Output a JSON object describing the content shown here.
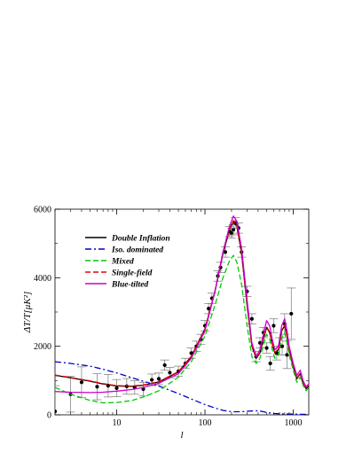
{
  "chart_data": {
    "type": "line",
    "xlabel": "l",
    "ylabel": "ΔT/T[μK²]",
    "x_scale": "log",
    "xlim": [
      2,
      1500
    ],
    "ylim": [
      0,
      6000
    ],
    "x_ticks": [
      {
        "value": 10,
        "label": "10"
      },
      {
        "value": 100,
        "label": "100"
      },
      {
        "value": 1000,
        "label": "1000"
      }
    ],
    "y_ticks": [
      {
        "value": 0,
        "label": "0"
      },
      {
        "value": 2000,
        "label": "2000"
      },
      {
        "value": 4000,
        "label": "4000"
      },
      {
        "value": 6000,
        "label": "6000"
      }
    ],
    "grid": false,
    "legend_position": "top-left",
    "series": [
      {
        "name": "Double Inflation",
        "color": "#000000",
        "dash": "solid",
        "x": [
          2,
          3,
          5,
          7,
          10,
          15,
          20,
          30,
          50,
          70,
          100,
          130,
          160,
          190,
          210,
          230,
          260,
          300,
          340,
          380,
          420,
          460,
          500,
          540,
          580,
          620,
          680,
          740,
          800,
          850,
          900,
          1000,
          1100,
          1200,
          1300,
          1400,
          1500
        ],
        "y": [
          1150,
          1080,
          980,
          900,
          840,
          830,
          860,
          960,
          1250,
          1700,
          2500,
          3600,
          4700,
          5400,
          5650,
          5500,
          4700,
          3200,
          2000,
          1650,
          1800,
          2200,
          2550,
          2400,
          2050,
          1800,
          1900,
          2450,
          2600,
          2300,
          1900,
          1400,
          1050,
          1200,
          900,
          760,
          850
        ]
      },
      {
        "name": "Iso. dominated",
        "color": "#0000cc",
        "dash": "dashdot",
        "x": [
          2,
          3,
          5,
          7,
          10,
          15,
          20,
          30,
          50,
          70,
          100,
          130,
          160,
          200,
          260,
          330,
          400,
          460,
          520,
          600,
          700,
          800,
          1000,
          1200,
          1500
        ],
        "y": [
          1550,
          1500,
          1420,
          1330,
          1220,
          1080,
          980,
          840,
          620,
          460,
          300,
          200,
          130,
          90,
          90,
          110,
          120,
          90,
          60,
          40,
          30,
          25,
          20,
          15,
          10
        ]
      },
      {
        "name": "Mixed",
        "color": "#00cc00",
        "dash": "dashed",
        "x": [
          2,
          3,
          5,
          7,
          10,
          15,
          20,
          30,
          50,
          70,
          100,
          130,
          160,
          190,
          210,
          230,
          260,
          300,
          340,
          380,
          420,
          460,
          500,
          540,
          580,
          620,
          680,
          740,
          800,
          850,
          900,
          1000,
          1100,
          1200,
          1300,
          1400,
          1500
        ],
        "y": [
          800,
          600,
          420,
          350,
          360,
          420,
          520,
          700,
          1100,
          1550,
          2300,
          3200,
          4000,
          4500,
          4650,
          4450,
          3800,
          2600,
          1700,
          1500,
          1650,
          2050,
          2350,
          2200,
          1900,
          1650,
          1750,
          2250,
          2400,
          2100,
          1750,
          1300,
          950,
          1100,
          850,
          700,
          800
        ]
      },
      {
        "name": "Single-field",
        "color": "#ee0000",
        "dash": "dashed",
        "x": [
          2,
          3,
          5,
          7,
          10,
          15,
          20,
          30,
          50,
          70,
          100,
          130,
          160,
          190,
          210,
          230,
          260,
          300,
          340,
          380,
          420,
          460,
          500,
          540,
          580,
          620,
          680,
          740,
          800,
          850,
          900,
          1000,
          1100,
          1200,
          1300,
          1400,
          1500
        ],
        "y": [
          1160,
          1090,
          990,
          910,
          850,
          840,
          870,
          970,
          1260,
          1710,
          2510,
          3620,
          4720,
          5420,
          5670,
          5520,
          4720,
          3220,
          2020,
          1670,
          1820,
          2220,
          2570,
          2420,
          2070,
          1820,
          1920,
          2470,
          2620,
          2320,
          1920,
          1420,
          1070,
          1220,
          920,
          780,
          870
        ]
      },
      {
        "name": "Blue-tilted",
        "color": "#cc00cc",
        "dash": "solid",
        "x": [
          2,
          3,
          5,
          7,
          10,
          15,
          20,
          30,
          50,
          70,
          100,
          130,
          160,
          190,
          210,
          230,
          260,
          300,
          340,
          380,
          420,
          460,
          500,
          540,
          580,
          620,
          680,
          740,
          800,
          850,
          900,
          1000,
          1100,
          1200,
          1300,
          1400,
          1500
        ],
        "y": [
          680,
          660,
          650,
          660,
          690,
          740,
          800,
          920,
          1200,
          1650,
          2450,
          3600,
          4750,
          5500,
          5800,
          5650,
          4850,
          3350,
          2100,
          1700,
          1900,
          2350,
          2750,
          2600,
          2200,
          1900,
          2000,
          2600,
          2800,
          2450,
          2000,
          1500,
          1150,
          1300,
          980,
          820,
          900
        ]
      }
    ],
    "data_points": {
      "x": [
        2,
        3,
        4,
        6,
        8,
        10,
        13,
        16,
        20,
        25,
        30,
        35,
        40,
        50,
        60,
        70,
        80,
        90,
        100,
        110,
        120,
        140,
        150,
        170,
        190,
        200,
        210,
        220,
        240,
        260,
        300,
        340,
        380,
        420,
        460,
        500,
        550,
        600,
        650,
        700,
        750,
        800,
        850,
        950
      ],
      "y": [
        100,
        600,
        950,
        820,
        850,
        780,
        830,
        800,
        750,
        1020,
        1050,
        1450,
        1230,
        1270,
        1500,
        1800,
        2000,
        2200,
        2600,
        3100,
        3400,
        4050,
        4300,
        4750,
        5350,
        5300,
        5400,
        5600,
        5450,
        4750,
        3600,
        2800,
        1700,
        2100,
        2400,
        1950,
        1500,
        2600,
        1800,
        2000,
        2000,
        2650,
        1750,
        2950
      ],
      "err": [
        750,
        520,
        450,
        380,
        330,
        250,
        230,
        200,
        200,
        170,
        170,
        150,
        150,
        150,
        150,
        150,
        150,
        150,
        150,
        150,
        150,
        150,
        150,
        150,
        150,
        150,
        150,
        150,
        150,
        150,
        150,
        150,
        150,
        150,
        150,
        150,
        200,
        200,
        200,
        250,
        250,
        300,
        400,
        750
      ]
    }
  }
}
